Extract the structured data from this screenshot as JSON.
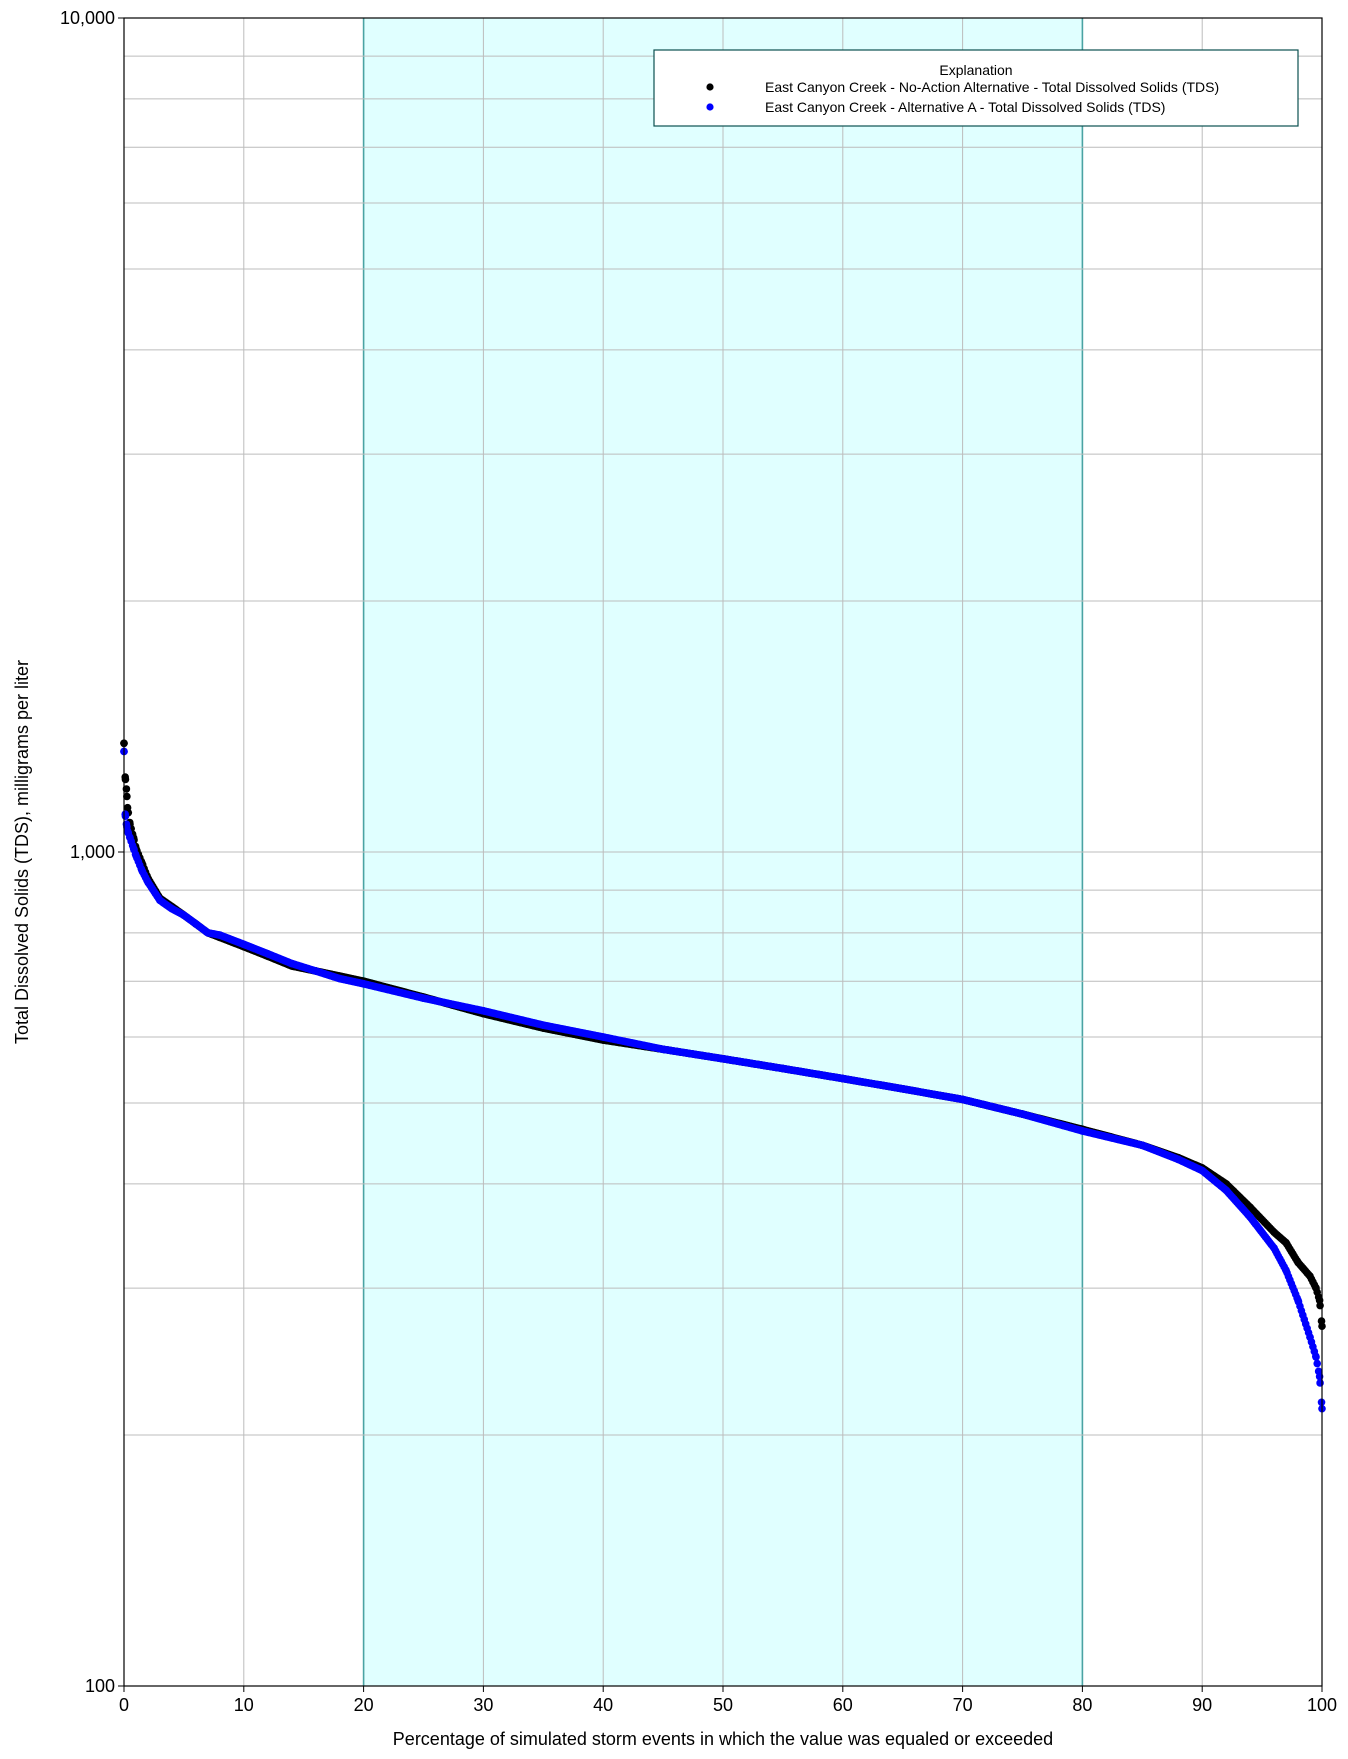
{
  "chart_data": {
    "type": "scatter",
    "title": "",
    "xlabel": "Percentage of simulated storm events in which the value was equaled or exceeded",
    "ylabel": "Total Dissolved Solids (TDS), milligrams per liter",
    "xlim": [
      0,
      100
    ],
    "ylim": [
      100,
      10000
    ],
    "yscale": "log",
    "grid": true,
    "x_ticks": [
      0,
      10,
      20,
      30,
      40,
      50,
      60,
      70,
      80,
      90,
      100
    ],
    "x_tick_labels": [
      "0",
      "10",
      "20",
      "30",
      "40",
      "50",
      "60",
      "70",
      "80",
      "90",
      "100"
    ],
    "y_ticks": [
      100,
      1000,
      10000
    ],
    "y_tick_labels": [
      "100",
      "1,000",
      "10,000"
    ],
    "shaded_band": {
      "x_from": 20,
      "x_to": 80,
      "color": "#e0ffff",
      "border_color": "#4aa3a3"
    },
    "legend": {
      "title": "Explanation",
      "placement": "top-right",
      "entries": [
        {
          "label": "East Canyon Creek - No-Action Alternative - Total Dissolved Solids (TDS)",
          "color": "#000000"
        },
        {
          "label": "East Canyon Creek - Alternative A - Total Dissolved Solids (TDS)",
          "color": "#0000ff"
        }
      ]
    },
    "series": [
      {
        "name": "East Canyon Creek - No-Action Alternative - Total Dissolved Solids (TDS)",
        "color": "#000000",
        "x": [
          0,
          0.1,
          0.2,
          0.3,
          0.5,
          0.8,
          1,
          1.5,
          2,
          3,
          4,
          5,
          6,
          7,
          8,
          10,
          12,
          14,
          16,
          18,
          20,
          25,
          30,
          35,
          40,
          45,
          50,
          55,
          60,
          65,
          70,
          75,
          80,
          85,
          88,
          90,
          92,
          94,
          96,
          97,
          98,
          99,
          99.5,
          99.8,
          100
        ],
        "y": [
          1350,
          1230,
          1190,
          1130,
          1080,
          1040,
          1010,
          970,
          930,
          880,
          860,
          840,
          820,
          800,
          790,
          770,
          750,
          730,
          720,
          710,
          700,
          670,
          640,
          615,
          595,
          580,
          565,
          550,
          535,
          520,
          505,
          485,
          465,
          445,
          430,
          418,
          400,
          375,
          350,
          340,
          322,
          310,
          300,
          290,
          270
        ]
      },
      {
        "name": "East Canyon Creek - Alternative A - Total Dissolved Solids (TDS)",
        "color": "#0000ff",
        "x": [
          0,
          0.1,
          0.2,
          0.3,
          0.5,
          0.8,
          1,
          1.5,
          2,
          3,
          4,
          5,
          6,
          7,
          8,
          10,
          12,
          14,
          16,
          18,
          20,
          25,
          30,
          35,
          40,
          45,
          50,
          55,
          60,
          65,
          70,
          75,
          80,
          85,
          88,
          90,
          92,
          94,
          96,
          97,
          98,
          99,
          99.5,
          99.8,
          100
        ],
        "y": [
          1320,
          1110,
          1080,
          1060,
          1040,
          1010,
          990,
          950,
          920,
          875,
          855,
          840,
          820,
          800,
          795,
          775,
          755,
          735,
          720,
          705,
          695,
          668,
          645,
          620,
          600,
          580,
          565,
          550,
          535,
          520,
          505,
          485,
          463,
          445,
          428,
          415,
          393,
          365,
          335,
          315,
          290,
          262,
          248,
          235,
          215
        ]
      }
    ]
  }
}
